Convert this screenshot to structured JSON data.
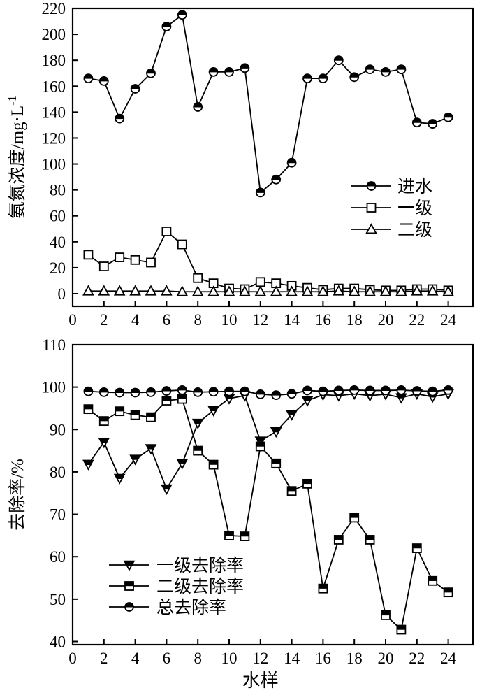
{
  "page": {
    "background": "#ffffff",
    "foreground": "#000000"
  },
  "chart_data": [
    {
      "type": "line",
      "panel": "top",
      "title": "",
      "xlabel": "",
      "ylabel": "氨氮浓度/mg·L⁻¹",
      "ylabel_base": "氨氮浓度/mg·L",
      "ylabel_sup": "-1",
      "ylim": [
        0,
        220
      ],
      "xlim": [
        0,
        25.5
      ],
      "grid": false,
      "legend_position": "center-right",
      "yticks": [
        0,
        20,
        40,
        60,
        80,
        100,
        120,
        140,
        160,
        180,
        200,
        220
      ],
      "xticks": [
        0,
        2,
        4,
        6,
        8,
        10,
        12,
        14,
        16,
        18,
        20,
        22,
        24
      ],
      "x": [
        1,
        2,
        3,
        4,
        5,
        6,
        7,
        8,
        9,
        10,
        11,
        12,
        13,
        14,
        15,
        16,
        17,
        18,
        19,
        20,
        21,
        22,
        23,
        24
      ],
      "series": [
        {
          "id": "influent",
          "name": "进水",
          "marker": "circle-half",
          "values": [
            166,
            164,
            135,
            158,
            170,
            206,
            215,
            144,
            171,
            171,
            174,
            78,
            88,
            101,
            166,
            166,
            180,
            167,
            173,
            171,
            173,
            132,
            131,
            136
          ]
        },
        {
          "id": "primary",
          "name": "一级",
          "marker": "square-open",
          "values": [
            30,
            21,
            28,
            26,
            24,
            48,
            38,
            12,
            8,
            4,
            3.5,
            9,
            8,
            6,
            4.5,
            3,
            4,
            4,
            3,
            2.5,
            2.5,
            3.5,
            3.5,
            2.5
          ]
        },
        {
          "id": "secondary",
          "name": "二级",
          "marker": "triangle-open",
          "values": [
            2,
            2,
            2,
            2,
            2,
            2,
            1.5,
            1.5,
            1.5,
            1.5,
            1.5,
            1.5,
            1.5,
            1.5,
            1.5,
            1.5,
            2,
            1.5,
            1.5,
            1.5,
            1.5,
            2,
            2,
            1.5
          ]
        }
      ]
    },
    {
      "type": "line",
      "panel": "bottom",
      "title": "",
      "xlabel": "水样",
      "ylabel": "去除率/%",
      "ylim": [
        40,
        110
      ],
      "xlim": [
        0,
        25.5
      ],
      "grid": false,
      "legend_position": "lower-left",
      "yticks": [
        40,
        50,
        60,
        70,
        80,
        90,
        100,
        110
      ],
      "xticks": [
        0,
        2,
        4,
        6,
        8,
        10,
        12,
        14,
        16,
        18,
        20,
        22,
        24
      ],
      "x": [
        1,
        2,
        3,
        4,
        5,
        6,
        7,
        8,
        9,
        10,
        11,
        12,
        13,
        14,
        15,
        16,
        17,
        18,
        19,
        20,
        21,
        22,
        23,
        24
      ],
      "series": [
        {
          "id": "primary-removal",
          "name": "一级去除率",
          "marker": "triangle-down-half",
          "values": [
            81.8,
            87,
            78.5,
            83,
            85.5,
            76,
            82,
            91.5,
            94.5,
            97.3,
            98,
            87.3,
            89.5,
            93.5,
            96.8,
            98.2,
            98,
            98.4,
            98,
            98.3,
            97.5,
            98.4,
            97.7,
            98.4
          ]
        },
        {
          "id": "secondary-removal",
          "name": "二级去除率",
          "marker": "square-half",
          "values": [
            94.8,
            92,
            94.3,
            93.4,
            92.9,
            96.8,
            97.2,
            85,
            81.7,
            65,
            64.8,
            86,
            82,
            75.5,
            77.2,
            52.5,
            64,
            69.2,
            64,
            46.2,
            42.8,
            62,
            54.3,
            51.6
          ]
        },
        {
          "id": "total-removal",
          "name": "总去除率",
          "marker": "circle-half",
          "values": [
            99,
            98.8,
            98.7,
            98.7,
            98.8,
            99.1,
            99.3,
            98.8,
            98.9,
            99,
            99,
            98.3,
            98.1,
            98.4,
            99.2,
            99,
            99.2,
            99.3,
            99.2,
            99.2,
            99.3,
            99.1,
            99,
            99.3
          ]
        }
      ]
    }
  ]
}
